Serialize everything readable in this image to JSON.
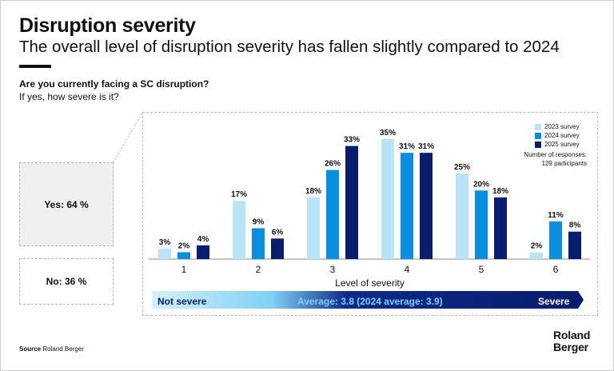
{
  "title": "Disruption severity",
  "subtitle": "The overall level of disruption severity has fallen slightly compared to 2024",
  "question": "Are you currently facing a SC disruption?",
  "subquestion": "If yes, how severe is it?",
  "answers": {
    "yes": "Yes: 64 %",
    "no": "No: 36 %"
  },
  "responses": {
    "line1": "Number of responses:",
    "line2": "129 participants"
  },
  "scale": {
    "left": "Not severe",
    "middle": "Average: 3.8 (2024 average: 3.9)",
    "right": "Severe"
  },
  "source": {
    "label": "Source",
    "text": "Roland Berger"
  },
  "logo": {
    "line1": "Roland",
    "line2": "Berger"
  },
  "chart_data": {
    "type": "bar",
    "categories": [
      "1",
      "2",
      "3",
      "4",
      "5",
      "6"
    ],
    "xlabel": "Level of severity",
    "ylabel": "",
    "ylim": [
      0,
      35
    ],
    "unit": "%",
    "legend_position": "top-right",
    "series": [
      {
        "name": "2023 survey",
        "color": "#b8e3f8",
        "values": [
          3,
          17,
          18,
          35,
          25,
          2
        ]
      },
      {
        "name": "2024 survey",
        "color": "#0a8fe0",
        "values": [
          2,
          9,
          26,
          31,
          20,
          11
        ]
      },
      {
        "name": "2025 survey",
        "color": "#071d6e",
        "values": [
          4,
          6,
          33,
          31,
          18,
          8
        ]
      }
    ]
  }
}
